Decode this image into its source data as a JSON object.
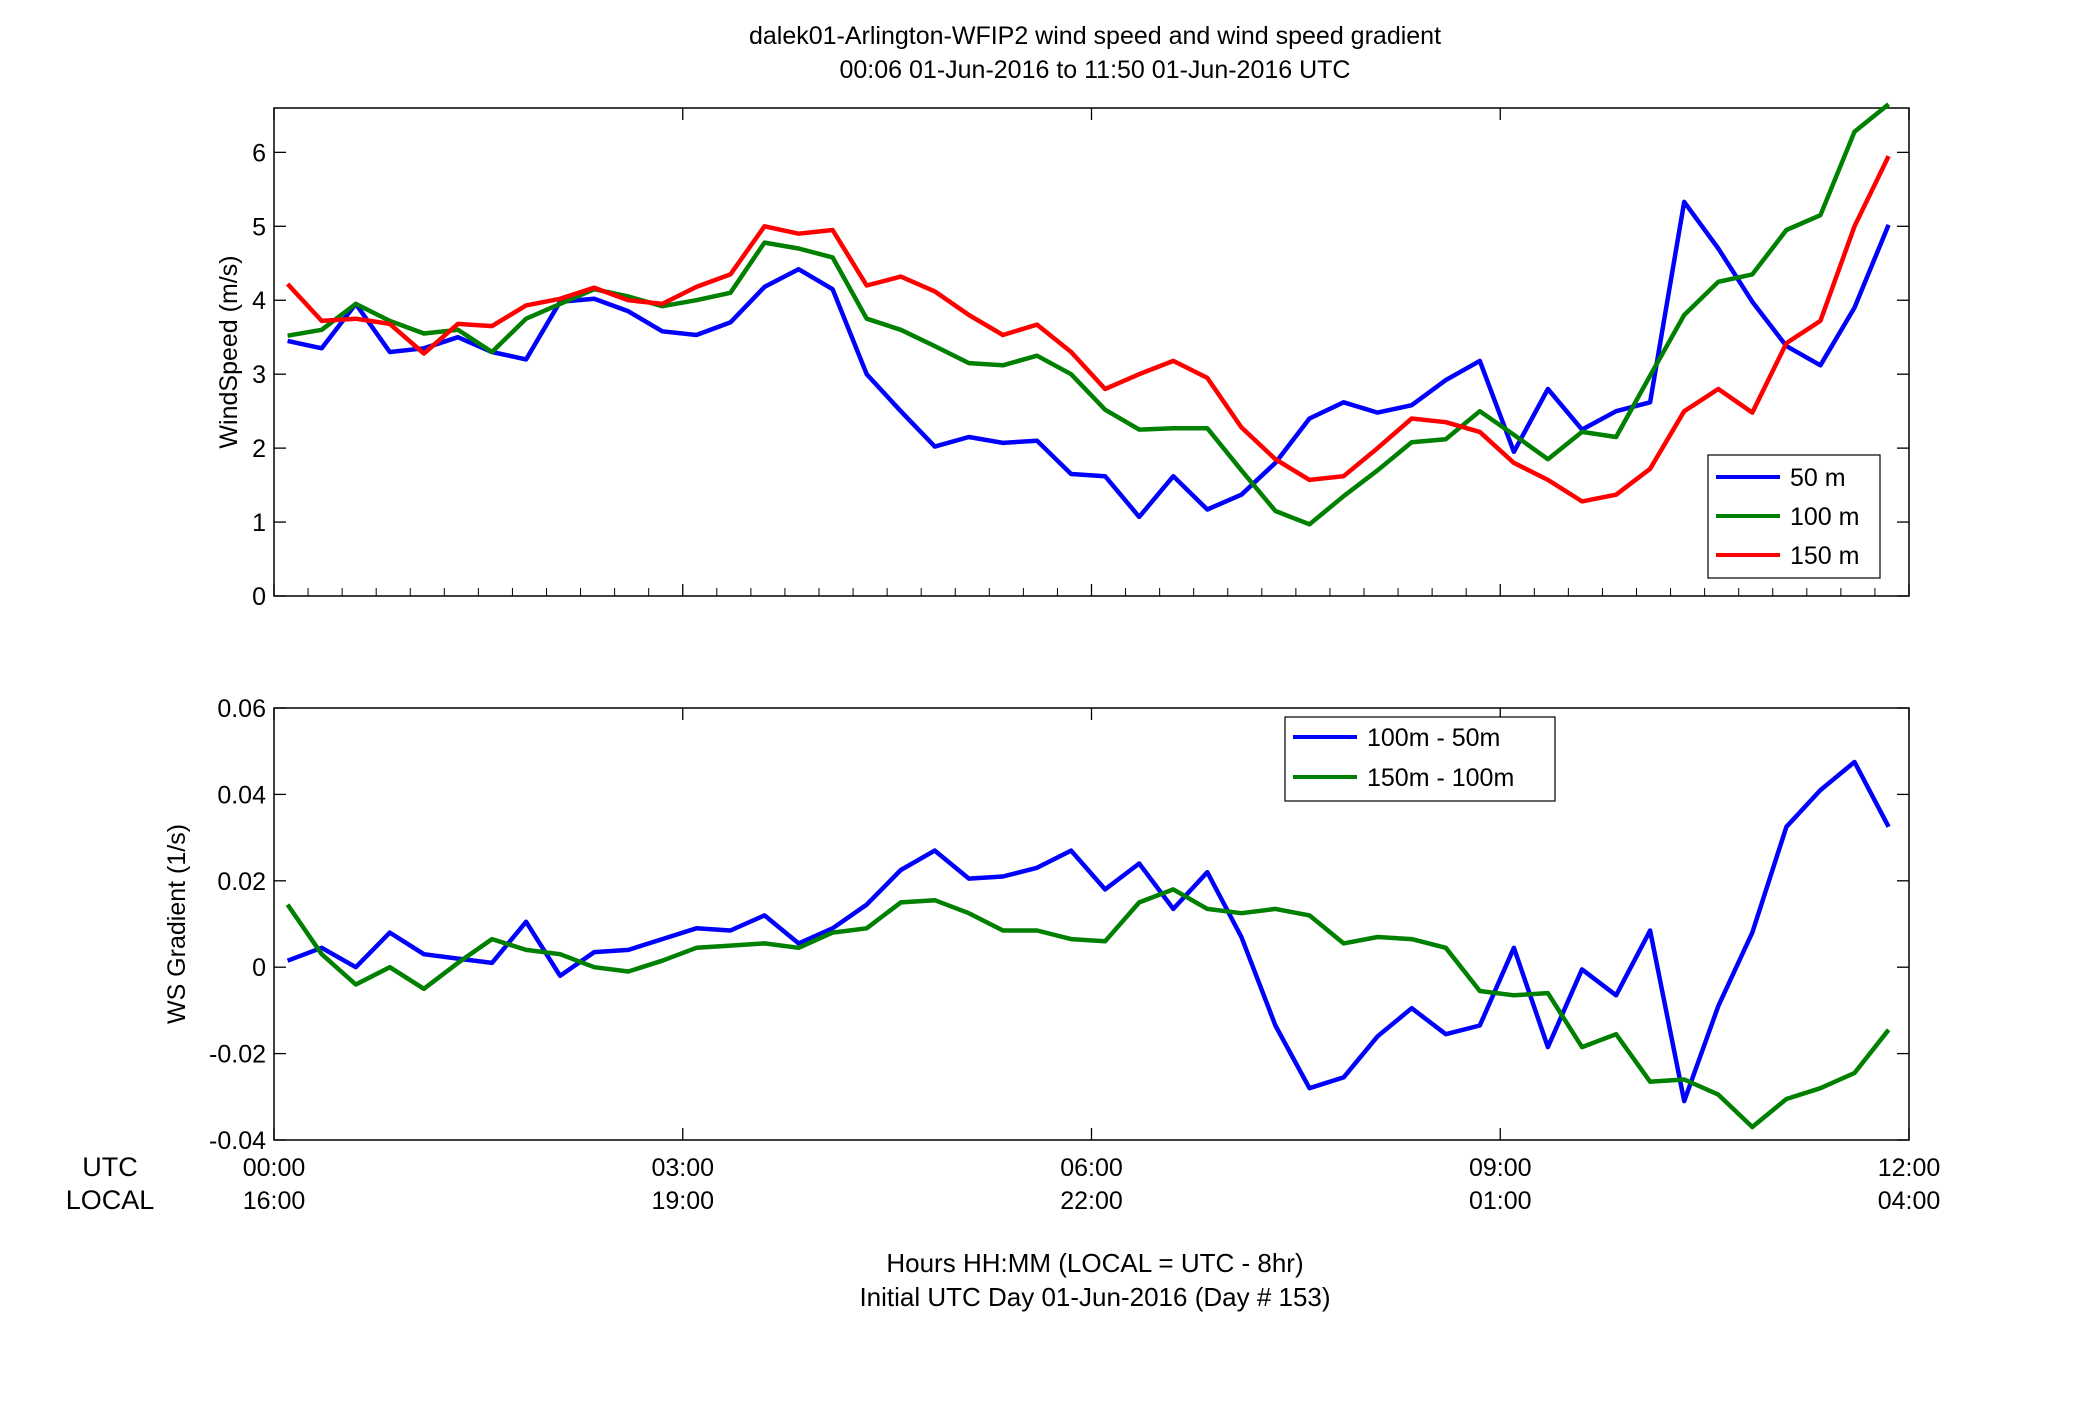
{
  "title_line1": "dalek01-Arlington-WFIP2  wind speed and wind speed gradient",
  "title_line2": "00:06 01-Jun-2016 to 11:50 01-Jun-2016  UTC",
  "xlabel_line1": "Hours HH:MM  (LOCAL = UTC - 8hr)",
  "xlabel_line2": "Initial UTC Day 01-Jun-2016 (Day # 153)",
  "row_label_utc": "UTC",
  "row_label_local": "LOCAL",
  "chart_data": [
    {
      "type": "line",
      "ylabel": "WindSpeed (m/s)",
      "xlim": [
        0,
        12
      ],
      "ylim": [
        0,
        6.6
      ],
      "yticks": [
        0,
        1,
        2,
        3,
        4,
        5,
        6
      ],
      "ytick_labels": [
        "0",
        "1",
        "2",
        "3",
        "4",
        "5",
        "6"
      ],
      "grid": false,
      "legend_position": "bottom-right",
      "x": [
        0.1,
        0.35,
        0.6,
        0.85,
        1.1,
        1.35,
        1.6,
        1.85,
        2.1,
        2.35,
        2.6,
        2.85,
        3.1,
        3.35,
        3.6,
        3.85,
        4.1,
        4.35,
        4.6,
        4.85,
        5.1,
        5.35,
        5.6,
        5.85,
        6.1,
        6.35,
        6.6,
        6.85,
        7.1,
        7.35,
        7.6,
        7.85,
        8.1,
        8.35,
        8.6,
        8.85,
        9.1,
        9.35,
        9.6,
        9.85,
        10.1,
        10.35,
        10.6,
        10.85,
        11.1,
        11.35,
        11.6,
        11.85
      ],
      "series": [
        {
          "name": "50 m",
          "color": "#0000ff",
          "values": [
            3.45,
            3.35,
            3.95,
            3.3,
            3.35,
            3.5,
            3.3,
            3.2,
            3.98,
            4.02,
            3.85,
            3.58,
            3.53,
            3.7,
            4.18,
            4.42,
            4.15,
            3.0,
            2.5,
            2.02,
            2.15,
            2.07,
            2.1,
            1.65,
            1.62,
            1.07,
            1.62,
            1.17,
            1.37,
            1.8,
            2.4,
            2.62,
            2.48,
            2.58,
            2.92,
            3.18,
            1.95,
            2.8,
            2.25,
            2.5,
            2.62,
            5.33,
            4.7,
            3.98,
            3.38,
            3.12,
            3.9,
            5.02
          ]
        },
        {
          "name": "100 m",
          "color": "#008000",
          "values": [
            3.52,
            3.6,
            3.95,
            3.72,
            3.55,
            3.6,
            3.3,
            3.75,
            3.95,
            4.15,
            4.05,
            3.92,
            4.0,
            4.1,
            4.78,
            4.7,
            4.58,
            3.75,
            3.6,
            3.38,
            3.15,
            3.12,
            3.25,
            3.0,
            2.52,
            2.25,
            2.27,
            2.27,
            1.7,
            1.15,
            0.97,
            1.35,
            1.7,
            2.08,
            2.12,
            2.5,
            2.18,
            1.85,
            2.22,
            2.15,
            2.98,
            3.8,
            4.25,
            4.35,
            4.95,
            5.15,
            6.28,
            6.65
          ]
        },
        {
          "name": "150 m",
          "color": "#ff0000",
          "values": [
            4.22,
            3.72,
            3.75,
            3.68,
            3.28,
            3.68,
            3.65,
            3.93,
            4.02,
            4.17,
            4.0,
            3.95,
            4.18,
            4.35,
            5.0,
            4.9,
            4.95,
            4.2,
            4.32,
            4.12,
            3.8,
            3.53,
            3.67,
            3.3,
            2.8,
            3.0,
            3.18,
            2.95,
            2.28,
            1.85,
            1.57,
            1.62,
            2.0,
            2.4,
            2.35,
            2.22,
            1.8,
            1.57,
            1.28,
            1.37,
            1.72,
            2.5,
            2.8,
            2.48,
            3.42,
            3.72,
            5.0,
            5.95
          ]
        }
      ]
    },
    {
      "type": "line",
      "ylabel": "WS Gradient (1/s)",
      "xlim": [
        0,
        12
      ],
      "ylim": [
        -0.04,
        0.06
      ],
      "yticks": [
        -0.04,
        -0.02,
        0,
        0.02,
        0.04,
        0.06
      ],
      "ytick_labels": [
        "-0.04",
        "-0.02",
        "0",
        "0.02",
        "0.04",
        "0.06"
      ],
      "grid": false,
      "legend_position": "top-right",
      "xticks": [
        0,
        3,
        6,
        9,
        12
      ],
      "xtick_labels_utc": [
        "00:00",
        "03:00",
        "06:00",
        "09:00",
        "12:00"
      ],
      "xtick_labels_local": [
        "16:00",
        "19:00",
        "22:00",
        "01:00",
        "04:00"
      ],
      "x": [
        0.1,
        0.35,
        0.6,
        0.85,
        1.1,
        1.35,
        1.6,
        1.85,
        2.1,
        2.35,
        2.6,
        2.85,
        3.1,
        3.35,
        3.6,
        3.85,
        4.1,
        4.35,
        4.6,
        4.85,
        5.1,
        5.35,
        5.6,
        5.85,
        6.1,
        6.35,
        6.6,
        6.85,
        7.1,
        7.35,
        7.6,
        7.85,
        8.1,
        8.35,
        8.6,
        8.85,
        9.1,
        9.35,
        9.6,
        9.85,
        10.1,
        10.35,
        10.6,
        10.85,
        11.1,
        11.35,
        11.6,
        11.85
      ],
      "series": [
        {
          "name": "100m - 50m",
          "color": "#0000ff",
          "values": [
            0.0015,
            0.0045,
            0.0,
            0.008,
            0.003,
            0.002,
            0.001,
            0.0105,
            -0.002,
            0.0035,
            0.004,
            0.0065,
            0.009,
            0.0085,
            0.012,
            0.0055,
            0.009,
            0.0145,
            0.0225,
            0.027,
            0.0205,
            0.021,
            0.023,
            0.027,
            0.018,
            0.024,
            0.0135,
            0.022,
            0.007,
            -0.0135,
            -0.028,
            -0.0255,
            -0.016,
            -0.0095,
            -0.0155,
            -0.0135,
            0.0045,
            -0.0185,
            -0.0005,
            -0.0065,
            0.0085,
            -0.031,
            -0.009,
            0.008,
            0.0325,
            0.041,
            0.0475,
            0.0325
          ]
        },
        {
          "name": "150m - 100m",
          "color": "#008000",
          "values": [
            0.0145,
            0.003,
            -0.004,
            0.0,
            -0.005,
            0.001,
            0.0065,
            0.004,
            0.003,
            0.0,
            -0.001,
            0.0015,
            0.0045,
            0.005,
            0.0055,
            0.0045,
            0.008,
            0.009,
            0.015,
            0.0155,
            0.0125,
            0.0085,
            0.0085,
            0.0065,
            0.006,
            0.015,
            0.018,
            0.0135,
            0.0125,
            0.0135,
            0.012,
            0.0055,
            0.007,
            0.0065,
            0.0045,
            -0.0055,
            -0.0065,
            -0.006,
            -0.0185,
            -0.0155,
            -0.0265,
            -0.026,
            -0.0295,
            -0.037,
            -0.0305,
            -0.028,
            -0.0245,
            -0.0145
          ]
        }
      ]
    }
  ]
}
